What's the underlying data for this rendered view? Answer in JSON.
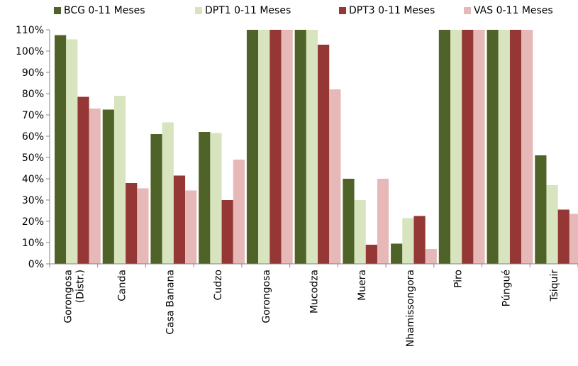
{
  "chart_data": {
    "type": "bar",
    "title": "",
    "xlabel": "",
    "ylabel": "",
    "ylim": [
      0,
      110
    ],
    "yticks": [
      "0%",
      "10%",
      "20%",
      "30%",
      "40%",
      "50%",
      "60%",
      "70%",
      "80%",
      "90%",
      "100%",
      "110%"
    ],
    "categories": [
      [
        "Gorongosa",
        "(Distr.)"
      ],
      [
        "Canda"
      ],
      [
        "Casa Banana"
      ],
      [
        "Cudzo"
      ],
      [
        "Gorongosa"
      ],
      [
        "Mucodza"
      ],
      [
        "Muera"
      ],
      [
        "Nhamissongora"
      ],
      [
        "Piro"
      ],
      [
        "Púngué"
      ],
      [
        "Tsiquir"
      ]
    ],
    "series": [
      {
        "name": "BCG 0-11 Meses",
        "color": "#4f6228",
        "values": [
          107.5,
          72.5,
          61,
          62,
          110,
          110,
          40,
          9.5,
          110,
          110,
          51
        ]
      },
      {
        "name": "DPT1 0-11 Meses",
        "color": "#d7e4bd",
        "values": [
          105.5,
          79,
          66.5,
          61.5,
          110,
          110,
          30,
          21.5,
          110,
          110,
          37
        ]
      },
      {
        "name": "DPT3 0-11 Meses",
        "color": "#953735",
        "values": [
          78.5,
          38,
          41.5,
          30,
          110,
          103,
          9,
          22.5,
          110,
          110,
          25.5
        ]
      },
      {
        "name": "VAS 0-11 Meses",
        "color": "#e6b9b8",
        "values": [
          73,
          35.5,
          34.5,
          49,
          110,
          82,
          40,
          7,
          110,
          110,
          23.5
        ]
      }
    ],
    "grid": false,
    "legend": "top"
  }
}
